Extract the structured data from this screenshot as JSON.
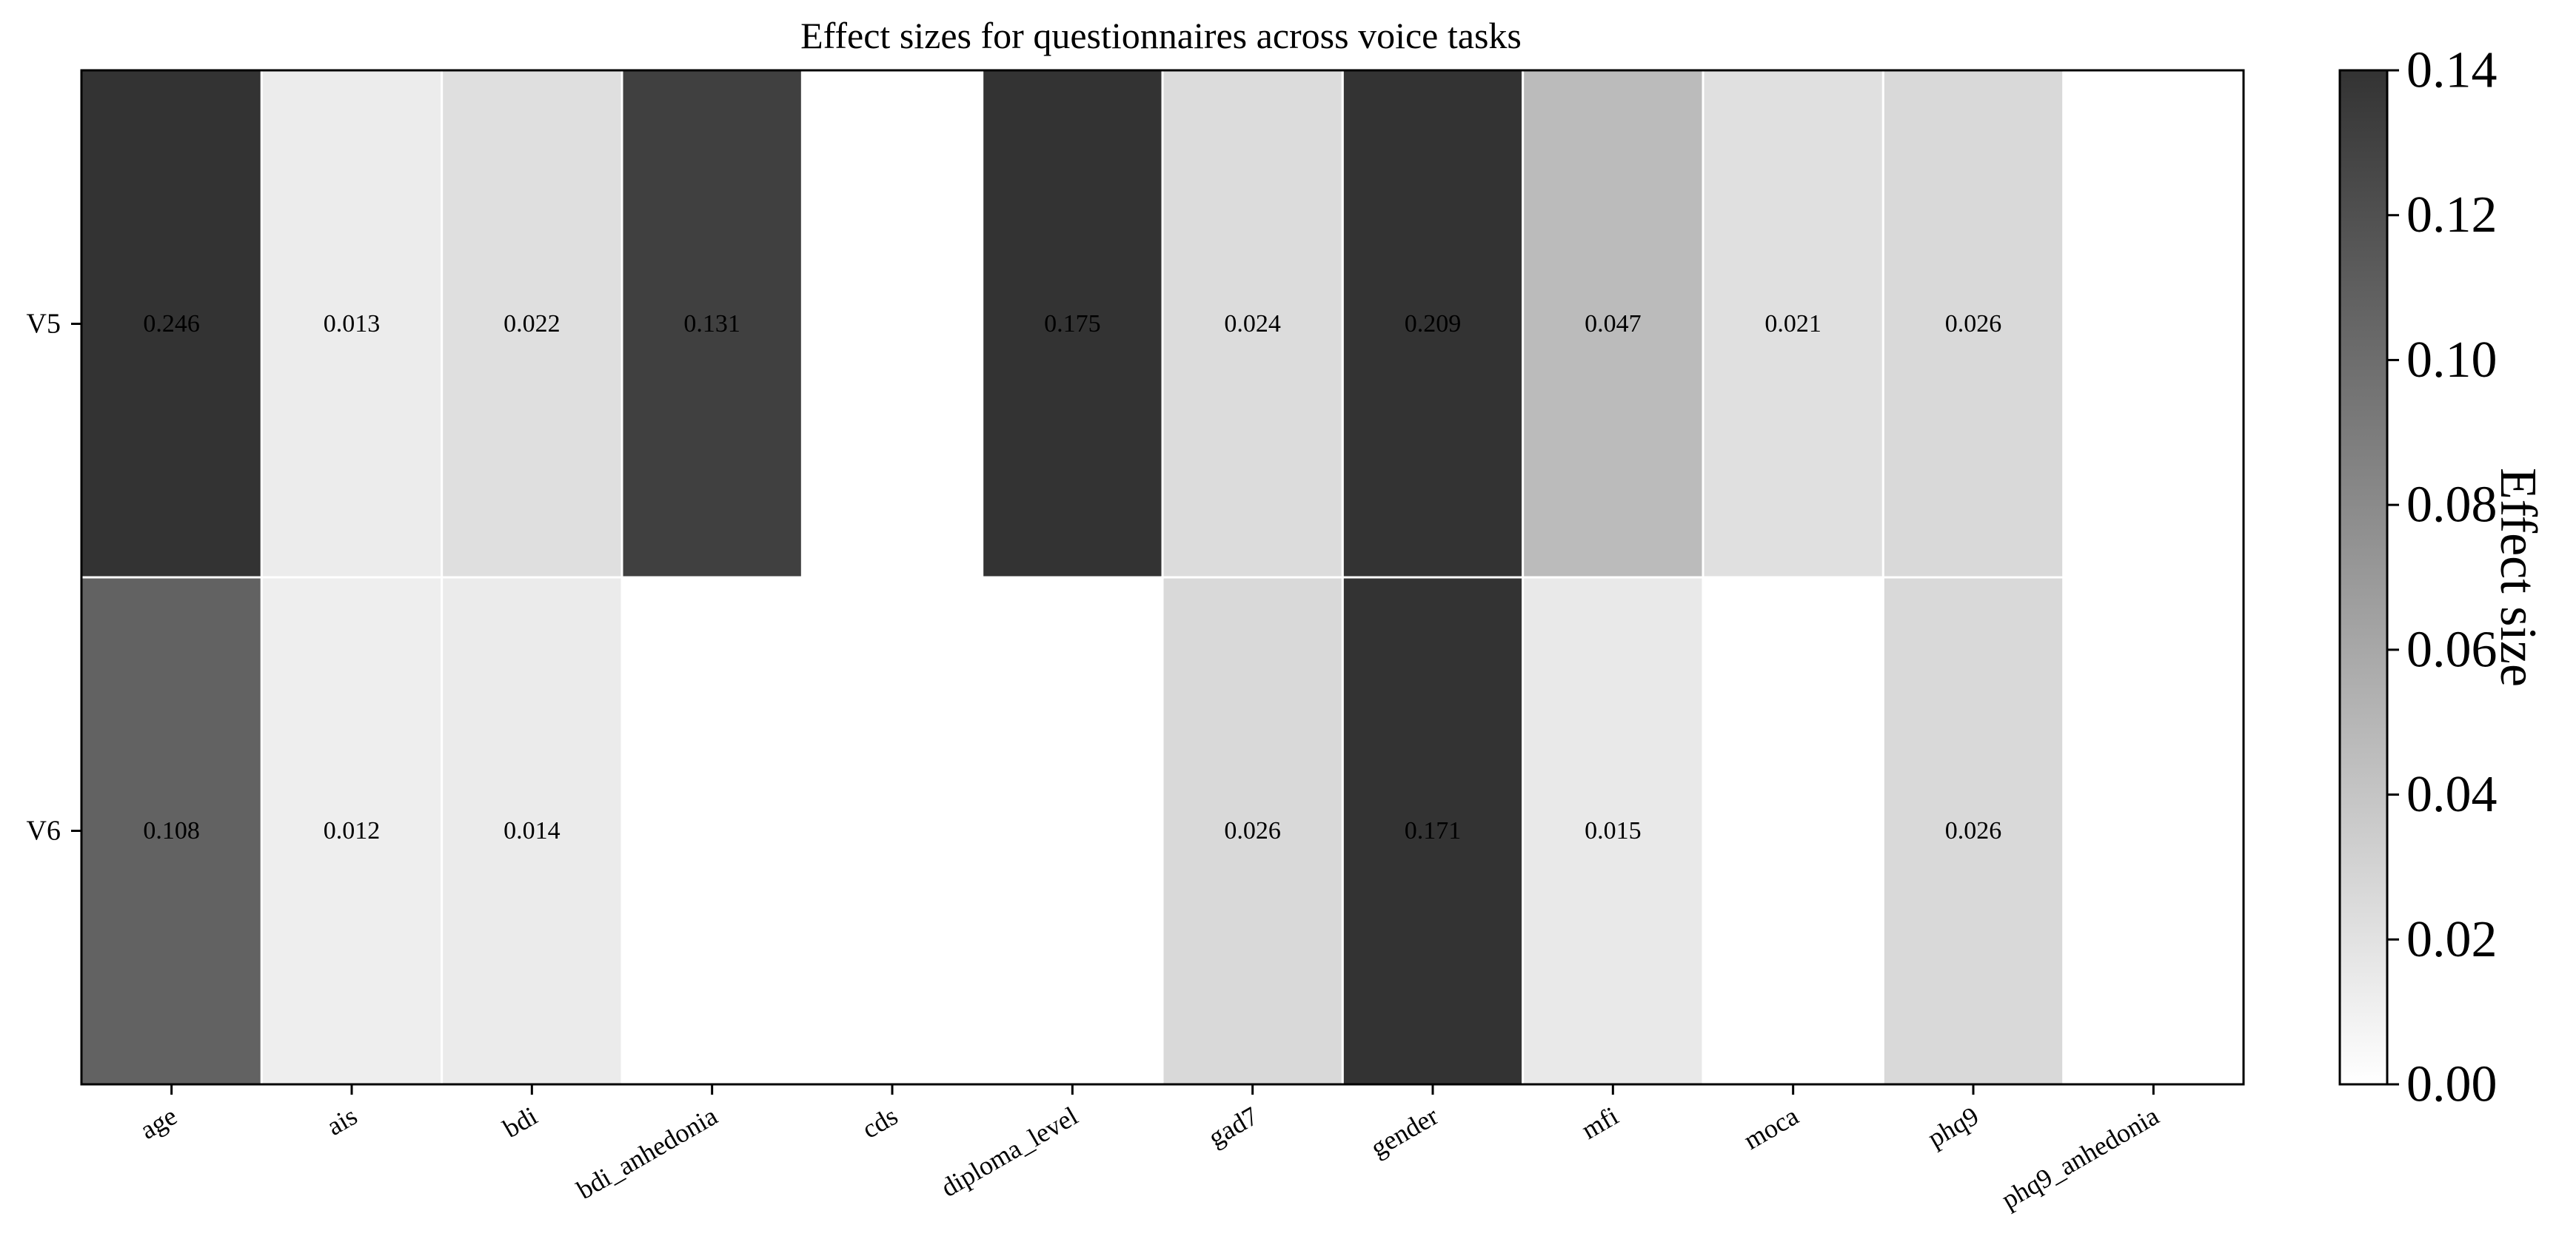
{
  "chart_data": {
    "type": "heatmap",
    "title": "Effect sizes for questionnaires across voice tasks",
    "xlabel": "",
    "ylabel": "",
    "columns": [
      "age",
      "ais",
      "bdi",
      "bdi_anhedonia",
      "cds",
      "diploma_level",
      "gad7",
      "gender",
      "mfi",
      "moca",
      "phq9",
      "phq9_anhedonia"
    ],
    "rows": [
      "V5",
      "V6"
    ],
    "values": [
      [
        0.246,
        0.013,
        0.022,
        0.131,
        null,
        0.175,
        0.024,
        0.209,
        0.047,
        0.021,
        0.026,
        null
      ],
      [
        0.108,
        0.012,
        0.014,
        null,
        null,
        null,
        0.026,
        0.171,
        0.015,
        null,
        0.026,
        null
      ]
    ],
    "value_labels": [
      [
        "0.246",
        "0.013",
        "0.022",
        "0.131",
        "",
        "0.175",
        "0.024",
        "0.209",
        "0.047",
        "0.021",
        "0.026",
        ""
      ],
      [
        "0.108",
        "0.012",
        "0.014",
        "",
        "",
        "",
        "0.026",
        "0.171",
        "0.015",
        "",
        "0.026",
        ""
      ]
    ],
    "colormap": "Greys",
    "color_low": "#ffffff",
    "color_high": "#333333",
    "vmin": 0.0,
    "vmax": 0.14,
    "grid": false,
    "colorbar": {
      "label": "Effect size",
      "ticks": [
        "0.00",
        "0.02",
        "0.04",
        "0.06",
        "0.08",
        "0.10",
        "0.12",
        "0.14"
      ],
      "position": "right"
    }
  }
}
